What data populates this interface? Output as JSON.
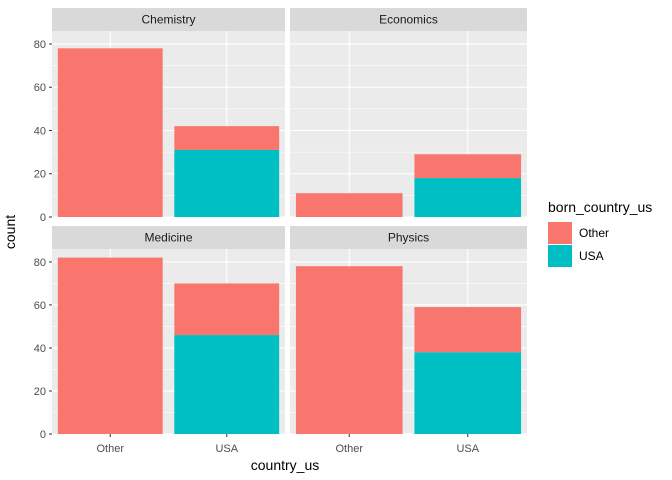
{
  "chart_data": {
    "type": "bar",
    "stacked": true,
    "faceted": true,
    "xlabel": "country_us",
    "ylabel": "count",
    "categories": [
      "Other",
      "USA"
    ],
    "yticks": [
      0,
      20,
      40,
      60,
      80
    ],
    "ylim": [
      0,
      86
    ],
    "grid": true,
    "legend": {
      "title": "born_country_us",
      "placement": "right",
      "entries": [
        {
          "label": "Other",
          "color": "#F8766D"
        },
        {
          "label": "USA",
          "color": "#00BFC4"
        }
      ]
    },
    "panels": [
      {
        "title": "Chemistry",
        "series": [
          {
            "name": "Other",
            "values": [
              78,
              11
            ]
          },
          {
            "name": "USA",
            "values": [
              0,
              31
            ]
          }
        ]
      },
      {
        "title": "Economics",
        "series": [
          {
            "name": "Other",
            "values": [
              11,
              11
            ]
          },
          {
            "name": "USA",
            "values": [
              0,
              18
            ]
          }
        ]
      },
      {
        "title": "Medicine",
        "series": [
          {
            "name": "Other",
            "values": [
              82,
              24
            ]
          },
          {
            "name": "USA",
            "values": [
              0,
              46
            ]
          }
        ]
      },
      {
        "title": "Physics",
        "series": [
          {
            "name": "Other",
            "values": [
              78,
              21
            ]
          },
          {
            "name": "USA",
            "values": [
              0,
              38
            ]
          }
        ]
      }
    ]
  }
}
